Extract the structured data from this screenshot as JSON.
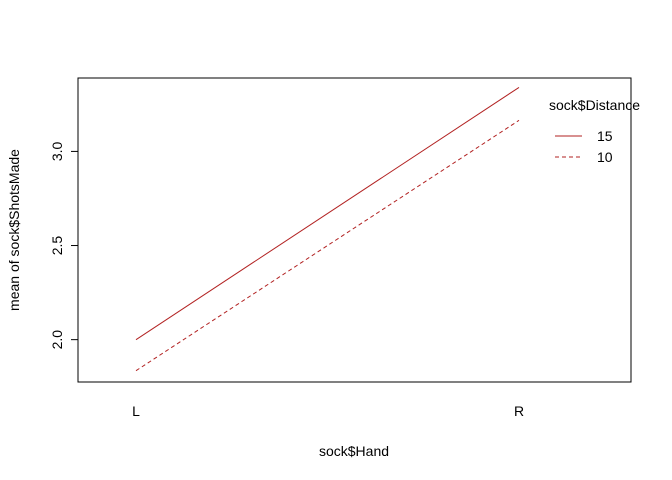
{
  "chart_data": {
    "type": "line",
    "title": "",
    "xlabel": "sock$Hand",
    "ylabel": "mean of  sock$ShotsMade",
    "categories": [
      "L",
      "R"
    ],
    "ylim": [
      1.775,
      3.39
    ],
    "yticks": [
      2.0,
      2.5,
      3.0
    ],
    "ytick_labels": [
      "2.0",
      "2.5",
      "3.0"
    ],
    "grid": false,
    "legend": {
      "title": "sock$Distance",
      "position": "top-right"
    },
    "series": [
      {
        "name": "15",
        "values": [
          2.0,
          3.34
        ],
        "color": "#b22222",
        "dash": "solid"
      },
      {
        "name": "10",
        "values": [
          1.835,
          3.165
        ],
        "color": "#b22222",
        "dash": "dashed"
      }
    ]
  }
}
